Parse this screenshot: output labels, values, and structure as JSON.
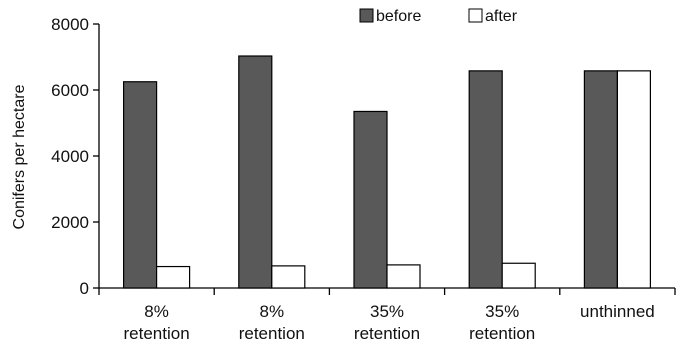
{
  "chart_data": {
    "type": "bar",
    "ylabel": "Conifers per hectare",
    "xlabel": "",
    "ylim": [
      0,
      8000
    ],
    "yticks": [
      0,
      2000,
      4000,
      6000,
      8000
    ],
    "categories": [
      [
        "8%",
        "retention"
      ],
      [
        "8%",
        "retention"
      ],
      [
        "35%",
        "retention"
      ],
      [
        "35%",
        "retention"
      ],
      [
        "unthinned"
      ]
    ],
    "series": [
      {
        "name": "before",
        "values": [
          6250,
          7030,
          5350,
          6580,
          6580
        ],
        "color": "#595959"
      },
      {
        "name": "after",
        "values": [
          650,
          670,
          700,
          750,
          6580
        ],
        "color": "#ffffff"
      }
    ],
    "legend_position": "top",
    "grid": false
  }
}
